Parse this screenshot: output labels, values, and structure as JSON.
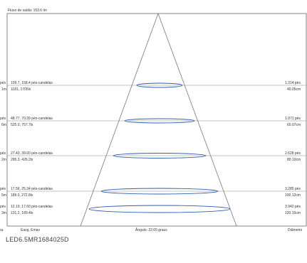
{
  "header": {
    "flux": "Fluxo de saída: 153.6 lm"
  },
  "rows": [
    {
      "left_edge_top": "pés",
      "left_edge_bot": "1m",
      "candela": "109.7, 158.4 pés-candelas",
      "lux": "1181, 1705lx",
      "dia_ft": "1.314 pés",
      "dia_cm": "40.05cm"
    },
    {
      "left_edge_top": "pés",
      "left_edge_bot": "6m",
      "candela": "48.77, 70.39 pés-candelas",
      "lux": "525.0, 757.7lx",
      "dia_ft": "1.971 pés",
      "dia_cm": "60.07cm"
    },
    {
      "left_edge_top": "pés",
      "left_edge_bot": "2m",
      "candela": "27.43, 39.60 pés-candelas",
      "lux": "295.3, 426.2lx",
      "dia_ft": "2.628 pés",
      "dia_cm": "80.10cm"
    },
    {
      "left_edge_top": "pés",
      "left_edge_bot": "5m",
      "candela": "17.56, 25.34 pés-candelas",
      "lux": "189.0, 272.8lx",
      "dia_ft": "3.285 pés",
      "dia_cm": "100.12cm"
    },
    {
      "left_edge_top": "pés",
      "left_edge_bot": "3m",
      "candela": "12.19, 17.60 pés-candelas",
      "lux": "131.2, 189.4lx",
      "dia_ft": "3.942 pés",
      "dia_cm": "120.15cm"
    }
  ],
  "footer": {
    "left_edge": "ra",
    "eavg": "Eavg, Emax",
    "angle": "Ângulo: 22.65  graus",
    "diameter": "Diâmetro"
  },
  "model": "LED6.5MR1684025D"
}
